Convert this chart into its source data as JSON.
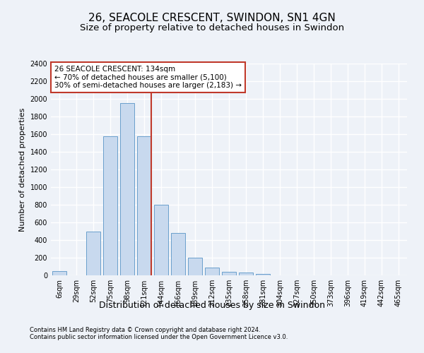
{
  "title": "26, SEACOLE CRESCENT, SWINDON, SN1 4GN",
  "subtitle": "Size of property relative to detached houses in Swindon",
  "xlabel": "Distribution of detached houses by size in Swindon",
  "ylabel": "Number of detached properties",
  "bar_color": "#c8d9ee",
  "bar_edge_color": "#6a9fcc",
  "categories": [
    "6sqm",
    "29sqm",
    "52sqm",
    "75sqm",
    "98sqm",
    "121sqm",
    "144sqm",
    "166sqm",
    "189sqm",
    "212sqm",
    "235sqm",
    "258sqm",
    "281sqm",
    "304sqm",
    "327sqm",
    "350sqm",
    "373sqm",
    "396sqm",
    "419sqm",
    "442sqm",
    "465sqm"
  ],
  "values": [
    50,
    0,
    500,
    1580,
    1950,
    1580,
    800,
    480,
    200,
    90,
    40,
    30,
    20,
    0,
    0,
    0,
    0,
    0,
    0,
    0,
    0
  ],
  "ylim": [
    0,
    2400
  ],
  "yticks": [
    0,
    200,
    400,
    600,
    800,
    1000,
    1200,
    1400,
    1600,
    1800,
    2000,
    2200,
    2400
  ],
  "vline_x": 5.43,
  "vline_color": "#c0392b",
  "annotation_line1": "26 SEACOLE CRESCENT: 134sqm",
  "annotation_line2": "← 70% of detached houses are smaller (5,100)",
  "annotation_line3": "30% of semi-detached houses are larger (2,183) →",
  "annotation_box_color": "#ffffff",
  "annotation_box_edge": "#c0392b",
  "footer1": "Contains HM Land Registry data © Crown copyright and database right 2024.",
  "footer2": "Contains public sector information licensed under the Open Government Licence v3.0.",
  "background_color": "#eef2f8",
  "plot_bg_color": "#eef2f8",
  "grid_color": "#ffffff",
  "title_fontsize": 11,
  "subtitle_fontsize": 9.5,
  "tick_fontsize": 7,
  "ylabel_fontsize": 8,
  "xlabel_fontsize": 9,
  "footer_fontsize": 6,
  "annotation_fontsize": 7.5
}
